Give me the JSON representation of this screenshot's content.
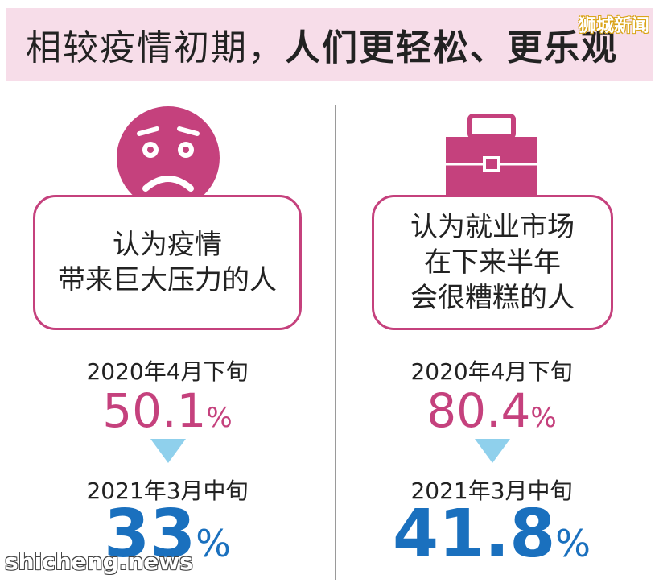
{
  "title": {
    "light": "相较疫情初期，",
    "bold": "人们更轻松、更乐观"
  },
  "brand_top": "狮城新闻",
  "brand_bottom": "shicheng.news",
  "colors": {
    "accent_pink": "#c5417d",
    "accent_blue": "#1a70be",
    "arrow": "#8fd0ec",
    "title_bg": "#f7dde9"
  },
  "left": {
    "icon": "worried-face-icon",
    "card_lines": [
      "认为疫情",
      "带来巨大压力的人"
    ],
    "period1": "2020年4月下旬",
    "value1": "50.1",
    "period2": "2021年3月中旬",
    "value2": "33",
    "unit": "%"
  },
  "right": {
    "icon": "briefcase-icon",
    "card_lines": [
      "认为就业市场",
      "在下来半年",
      "会很糟糕的人"
    ],
    "period1": "2020年4月下旬",
    "value1": "80.4",
    "period2": "2021年3月中旬",
    "value2": "41.8",
    "unit": "%"
  }
}
